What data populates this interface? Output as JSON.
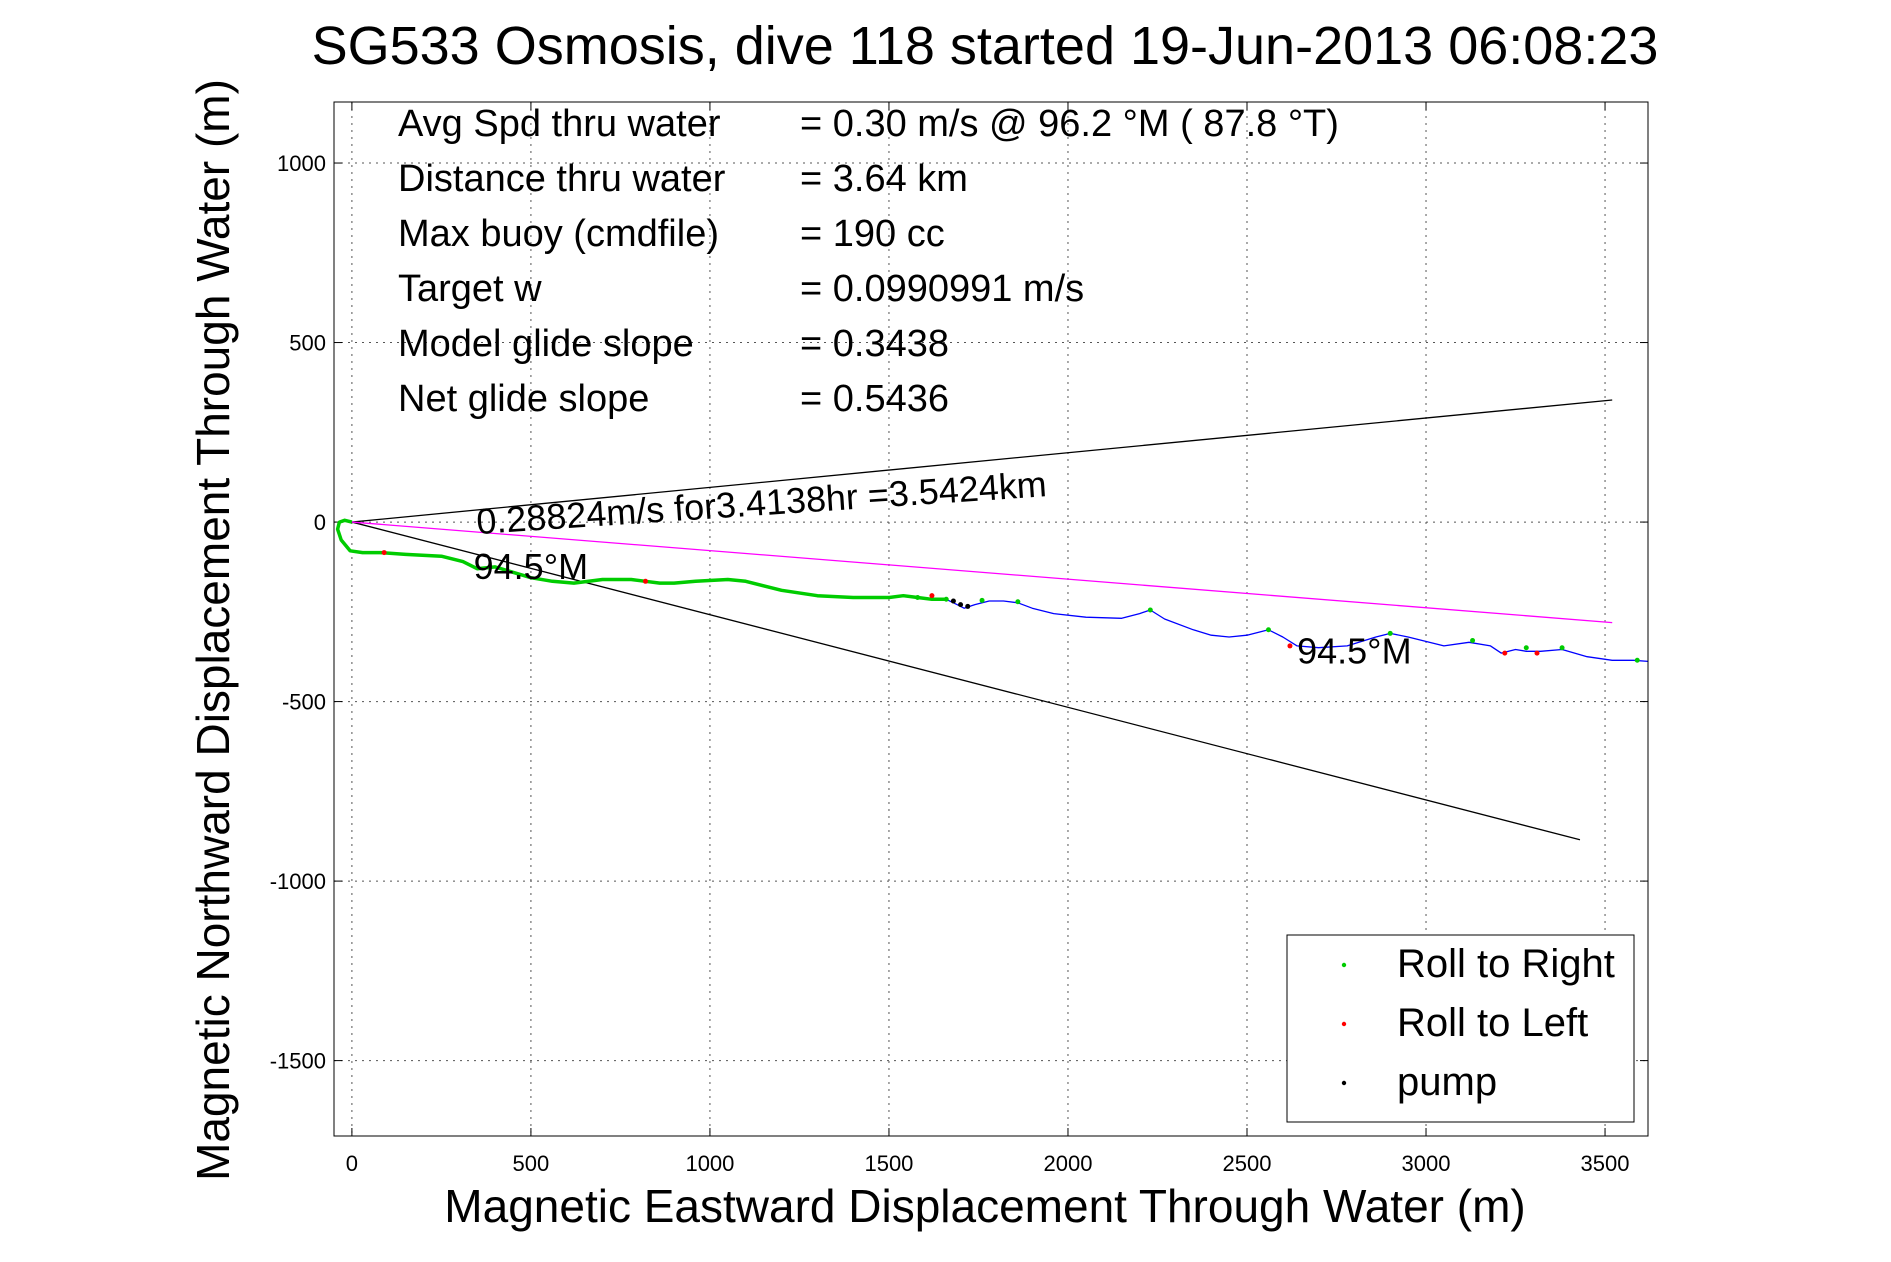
{
  "chart_data": {
    "type": "line",
    "title": "SG533 Osmosis, dive 118 started 19-Jun-2013 06:08:23",
    "xlabel": "Magnetic Eastward Displacement Through Water (m)",
    "ylabel": "Magnetic Northward Displacement Through Water (m)",
    "xlim": [
      -50,
      3620
    ],
    "ylim": [
      -1710,
      1170
    ],
    "xticks": [
      0,
      500,
      1000,
      1500,
      2000,
      2500,
      3000,
      3500
    ],
    "yticks": [
      1000,
      500,
      0,
      -500,
      -1000,
      -1500
    ],
    "grid": true,
    "legend_position": "bottom-right",
    "stats": [
      {
        "label": "Avg Spd thru water",
        "value": "=  0.30 m/s @  96.2 °M ( 87.8 °T)"
      },
      {
        "label": "Distance thru water",
        "value": "=  3.64 km"
      },
      {
        "label": "Max buoy (cmdfile)",
        "value": "= 190 cc"
      },
      {
        "label": "Target w",
        "value": "= 0.0990991 m/s"
      },
      {
        "label": "Model glide slope",
        "value": "= 0.3438"
      },
      {
        "label": "Net glide slope",
        "value": "= 0.5436"
      }
    ],
    "annotations": [
      {
        "text": "0.28824m/s for3.4138hr =3.5424km",
        "x": 350,
        "y": 0,
        "rotation": -3.8
      },
      {
        "text": "94.5°M",
        "x": 340,
        "y": -125,
        "rotation": 0
      },
      {
        "text": "94.5°M",
        "x": 2640,
        "y": -360,
        "rotation": 0
      }
    ],
    "lines": [
      {
        "name": "upper envelope",
        "color": "#000000",
        "x": [
          0,
          3520
        ],
        "y": [
          0,
          340
        ]
      },
      {
        "name": "lower envelope",
        "color": "#000000",
        "x": [
          0,
          3430
        ],
        "y": [
          0,
          -885
        ]
      },
      {
        "name": "net track",
        "color": "#ff00ff",
        "x": [
          0,
          3520
        ],
        "y": [
          0,
          -280
        ]
      }
    ],
    "track": {
      "dive_color": "#00cc00",
      "climb_color": "#0000ff",
      "dive_x": [
        0,
        -20,
        -35,
        -40,
        -30,
        -5,
        30,
        80,
        150,
        250,
        310,
        350,
        400,
        450,
        500,
        560,
        620,
        700,
        780,
        820,
        860,
        900,
        960,
        1050,
        1100,
        1200,
        1300,
        1400,
        1500,
        1540,
        1580,
        1620,
        1660
      ],
      "dive_y": [
        0,
        5,
        0,
        -20,
        -50,
        -80,
        -85,
        -85,
        -90,
        -95,
        -110,
        -130,
        -125,
        -140,
        -155,
        -165,
        -170,
        -160,
        -160,
        -165,
        -170,
        -170,
        -165,
        -160,
        -165,
        -190,
        -205,
        -210,
        -210,
        -205,
        -210,
        -215,
        -215
      ],
      "climb_x": [
        1660,
        1690,
        1710,
        1740,
        1780,
        1820,
        1860,
        1900,
        1960,
        2050,
        2150,
        2200,
        2230,
        2270,
        2350,
        2400,
        2450,
        2500,
        2560,
        2600,
        2640,
        2700,
        2780,
        2860,
        2900,
        2950,
        3050,
        3120,
        3180,
        3210,
        3250,
        3280,
        3320,
        3380,
        3450,
        3520,
        3580,
        3620
      ],
      "climb_y": [
        -215,
        -230,
        -240,
        -230,
        -220,
        -220,
        -225,
        -240,
        -255,
        -265,
        -268,
        -255,
        -245,
        -270,
        -300,
        -315,
        -320,
        -315,
        -300,
        -320,
        -345,
        -350,
        -345,
        -320,
        -310,
        -320,
        -345,
        -335,
        -345,
        -365,
        -355,
        -360,
        -360,
        -355,
        -375,
        -385,
        -385,
        -388
      ],
      "roll_right_x": [
        1580,
        1660,
        1760,
        1860,
        2230,
        2560,
        2900,
        3130,
        3280,
        3380,
        3590
      ],
      "roll_right_y": [
        -210,
        -215,
        -218,
        -222,
        -245,
        -300,
        -310,
        -330,
        -350,
        -350,
        -385
      ],
      "roll_left_x": [
        90,
        820,
        1620,
        2620,
        3220,
        3310
      ],
      "roll_left_y": [
        -85,
        -165,
        -205,
        -345,
        -365,
        -365
      ],
      "pump_x": [
        1680,
        1700,
        1720
      ],
      "pump_y": [
        -220,
        -230,
        -235
      ]
    },
    "legend": [
      {
        "label": "Roll to Right",
        "color": "#00cc00"
      },
      {
        "label": "Roll to Left",
        "color": "#ff0000"
      },
      {
        "label": "pump",
        "color": "#000000"
      }
    ]
  }
}
